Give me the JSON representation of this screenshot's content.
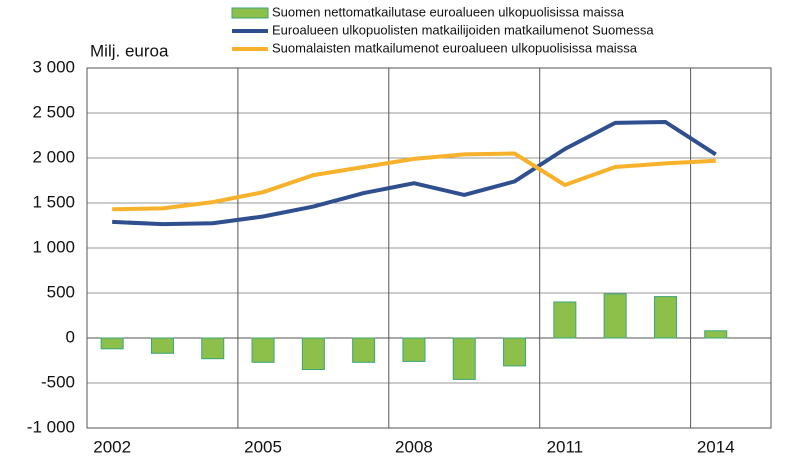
{
  "chart_data": {
    "type": "bar_line",
    "y_label": "Milj. euroa",
    "categories": [
      "2002",
      null,
      null,
      "2005",
      null,
      null,
      "2008",
      null,
      null,
      "2011",
      null,
      null,
      "2014"
    ],
    "series": [
      {
        "name": "Suomen nettomatkailutase euroalueen ulkopuolisissa maissa",
        "type": "bar",
        "color": "#8dc04a",
        "values": [
          -120,
          -170,
          -230,
          -270,
          -350,
          -270,
          -260,
          -460,
          -310,
          400,
          490,
          460,
          80
        ]
      },
      {
        "name": "Euroalueen ulkopuolisten matkailijoiden matkailumenot Suomessa",
        "type": "line",
        "color": "#2f4f8f",
        "values": [
          1290,
          1265,
          1275,
          1350,
          1460,
          1610,
          1720,
          1590,
          1740,
          2100,
          2390,
          2400,
          2040
        ]
      },
      {
        "name": "Suomalaisten matkailumenot euroalueen ulkopuolisissa maissa",
        "type": "line",
        "color": "#f7b12a",
        "values": [
          1430,
          1440,
          1510,
          1620,
          1810,
          1900,
          1990,
          2040,
          2050,
          1700,
          1900,
          1940,
          1970
        ]
      }
    ],
    "ylim": [
      -1000,
      3000
    ],
    "yticks": [
      {
        "value": -1000,
        "label": "-1 000"
      },
      -500,
      0,
      500,
      {
        "value": 1000,
        "label": "1 000"
      },
      {
        "value": 1500,
        "label": "1 500"
      },
      {
        "value": 2000,
        "label": "2 000"
      },
      {
        "value": 2500,
        "label": "2 500"
      },
      {
        "value": 3000,
        "label": "3 000"
      }
    ],
    "grid": true
  }
}
